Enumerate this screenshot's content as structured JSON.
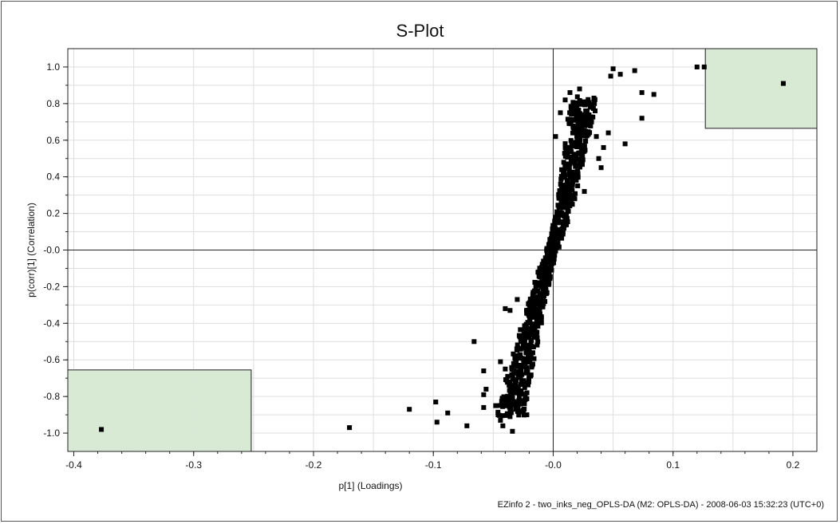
{
  "chart_data": {
    "type": "scatter",
    "title": "S-Plot",
    "xlabel": "p[1] (Loadings)",
    "ylabel": "p(corr)[1] (Correlation)",
    "xlim": [
      -0.405,
      0.22
    ],
    "ylim": [
      -1.1,
      1.1
    ],
    "x_ticks": [
      -0.4,
      -0.3,
      -0.2,
      -0.1,
      0.0,
      0.1,
      0.2
    ],
    "x_tick_labels": [
      "-0.4",
      "-0.3",
      "-0.2",
      "-0.1",
      "-0.0",
      "0.1",
      "0.2"
    ],
    "y_ticks": [
      1.0,
      0.8,
      0.6,
      0.4,
      0.2,
      0.0,
      -0.2,
      -0.4,
      -0.6,
      -0.8,
      -1.0
    ],
    "y_tick_labels": [
      "1.0",
      "0.8",
      "0.6",
      "0.4",
      "0.2",
      "-0.0",
      "-0.2",
      "-0.4",
      "-0.6",
      "-0.8",
      "-1.0"
    ],
    "grid": true,
    "highlight_regions": [
      {
        "x": [
          -0.405,
          -0.252
        ],
        "y": [
          -1.1,
          -0.655
        ],
        "color": "#d8ead4"
      },
      {
        "x": [
          0.127,
          0.22
        ],
        "y": [
          0.665,
          1.1
        ],
        "color": "#d8ead4"
      }
    ],
    "series": [
      {
        "values": [
          [
            -0.377,
            -0.98
          ],
          [
            -0.17,
            -0.97
          ],
          [
            -0.12,
            -0.87
          ],
          [
            -0.098,
            -0.83
          ],
          [
            -0.097,
            -0.94
          ],
          [
            -0.088,
            -0.89
          ],
          [
            -0.072,
            -0.96
          ],
          [
            -0.066,
            -0.5
          ],
          [
            -0.058,
            -0.66
          ],
          [
            -0.058,
            -0.86
          ],
          [
            -0.058,
            -0.79
          ],
          [
            -0.056,
            -0.76
          ],
          [
            -0.048,
            -0.85
          ],
          [
            -0.046,
            -0.9
          ],
          [
            -0.044,
            -0.93
          ],
          [
            -0.042,
            -0.96
          ],
          [
            -0.044,
            -0.61
          ],
          [
            -0.04,
            -0.65
          ],
          [
            -0.038,
            -0.69
          ],
          [
            -0.036,
            -0.72
          ],
          [
            -0.034,
            -0.99
          ],
          [
            -0.036,
            -0.91
          ],
          [
            -0.031,
            -0.87
          ],
          [
            -0.028,
            -0.82
          ],
          [
            -0.04,
            -0.32
          ],
          [
            -0.036,
            -0.33
          ],
          [
            -0.03,
            -0.27
          ],
          [
            -0.026,
            -0.88
          ],
          [
            -0.024,
            -0.84
          ],
          [
            -0.022,
            -0.9
          ],
          [
            0.002,
            0.62
          ],
          [
            0.006,
            0.75
          ],
          [
            0.01,
            0.82
          ],
          [
            0.014,
            0.86
          ],
          [
            0.018,
            0.78
          ],
          [
            0.022,
            0.88
          ],
          [
            0.028,
            0.81
          ],
          [
            0.032,
            0.7
          ],
          [
            0.034,
            0.83
          ],
          [
            0.036,
            0.62
          ],
          [
            0.038,
            0.5
          ],
          [
            0.04,
            0.45
          ],
          [
            0.042,
            0.56
          ],
          [
            0.046,
            0.64
          ],
          [
            0.048,
            0.95
          ],
          [
            0.05,
            0.99
          ],
          [
            0.056,
            0.96
          ],
          [
            0.06,
            0.58
          ],
          [
            0.068,
            0.98
          ],
          [
            0.074,
            0.86
          ],
          [
            0.074,
            0.72
          ],
          [
            0.084,
            0.85
          ],
          [
            0.12,
            1.0
          ],
          [
            0.126,
            1.0
          ],
          [
            0.192,
            0.91
          ],
          [
            0.026,
            0.32
          ],
          [
            0.018,
            0.28
          ],
          [
            0.012,
            0.22
          ]
        ]
      }
    ],
    "dense_band": {
      "description_points": [
        [
          -0.035,
          -0.9
        ],
        [
          -0.03,
          -0.75
        ],
        [
          -0.025,
          -0.6
        ],
        [
          -0.02,
          -0.45
        ],
        [
          -0.014,
          -0.3
        ],
        [
          -0.008,
          -0.15
        ],
        [
          -0.002,
          -0.02
        ],
        [
          0.004,
          0.1
        ],
        [
          0.01,
          0.25
        ],
        [
          0.014,
          0.4
        ],
        [
          0.018,
          0.55
        ],
        [
          0.022,
          0.7
        ],
        [
          0.026,
          0.82
        ]
      ]
    }
  },
  "footer": "EZinfo 2 - two_inks_neg_OPLS-DA (M2: OPLS-DA) - 2008-06-03 15:32:23 (UTC+0)"
}
